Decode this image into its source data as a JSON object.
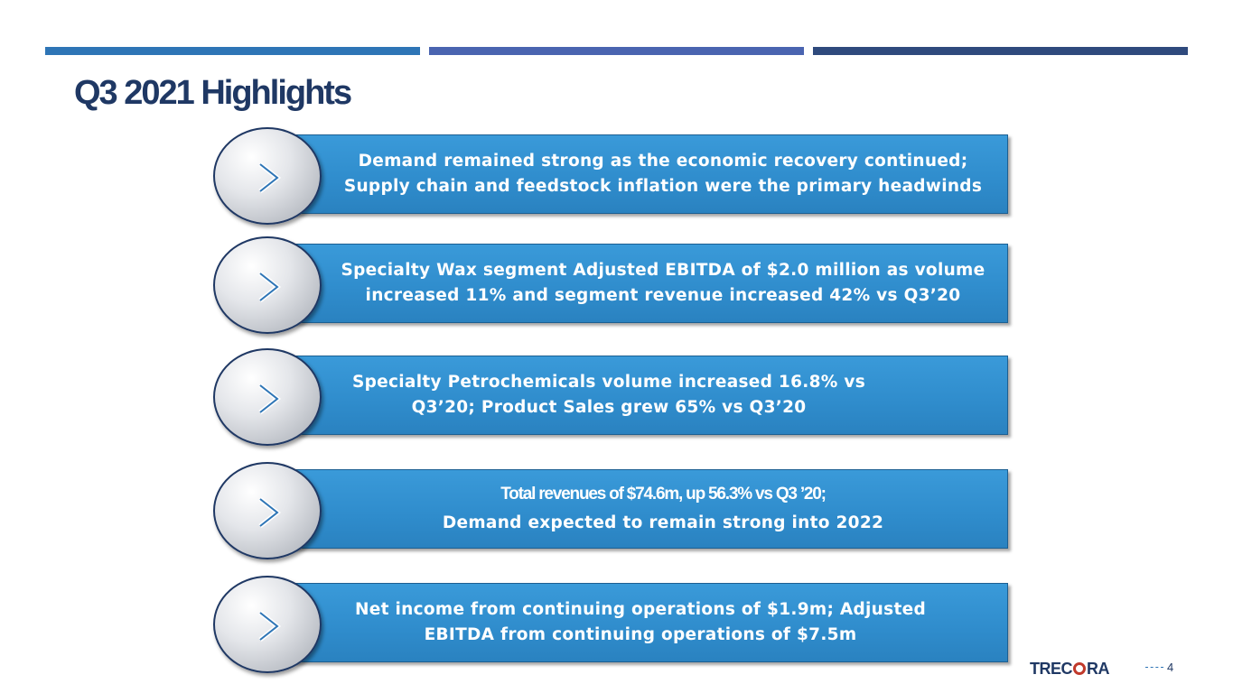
{
  "slide": {
    "title": "Q3 2021 Highlights",
    "page_number": "4"
  },
  "logo": {
    "pre": "TREC",
    "post": "RA"
  },
  "highlights": [
    {
      "lines": [
        "Demand remained strong as the economic recovery continued;",
        "Supply chain and feedstock inflation were the primary headwinds"
      ]
    },
    {
      "lines": [
        "Specialty Wax segment Adjusted EBITDA of $2.0 million as volume",
        "increased 11% and segment revenue increased 42% vs Q3’20"
      ]
    },
    {
      "lines": [
        "Specialty Petrochemicals volume increased 16.8%  vs",
        "Q3’20; Product Sales grew 65% vs Q3’20"
      ]
    },
    {
      "lines": [
        "Total revenues of $74.6m, up 56.3% vs Q3 ’20;",
        "Demand expected to remain strong into 2022"
      ]
    },
    {
      "lines": [
        "Net income from continuing operations of $1.9m;  Adjusted",
        "EBITDA from continuing operations of  $7.5m"
      ]
    }
  ],
  "icons": {
    "bullet": "chevron-right-icon"
  },
  "colors": {
    "title": "#1f3864",
    "banner": "#2f8ccc",
    "bar_1": "#2e75b6",
    "bar_2": "#4a64b0",
    "bar_3": "#2f4a7d"
  }
}
